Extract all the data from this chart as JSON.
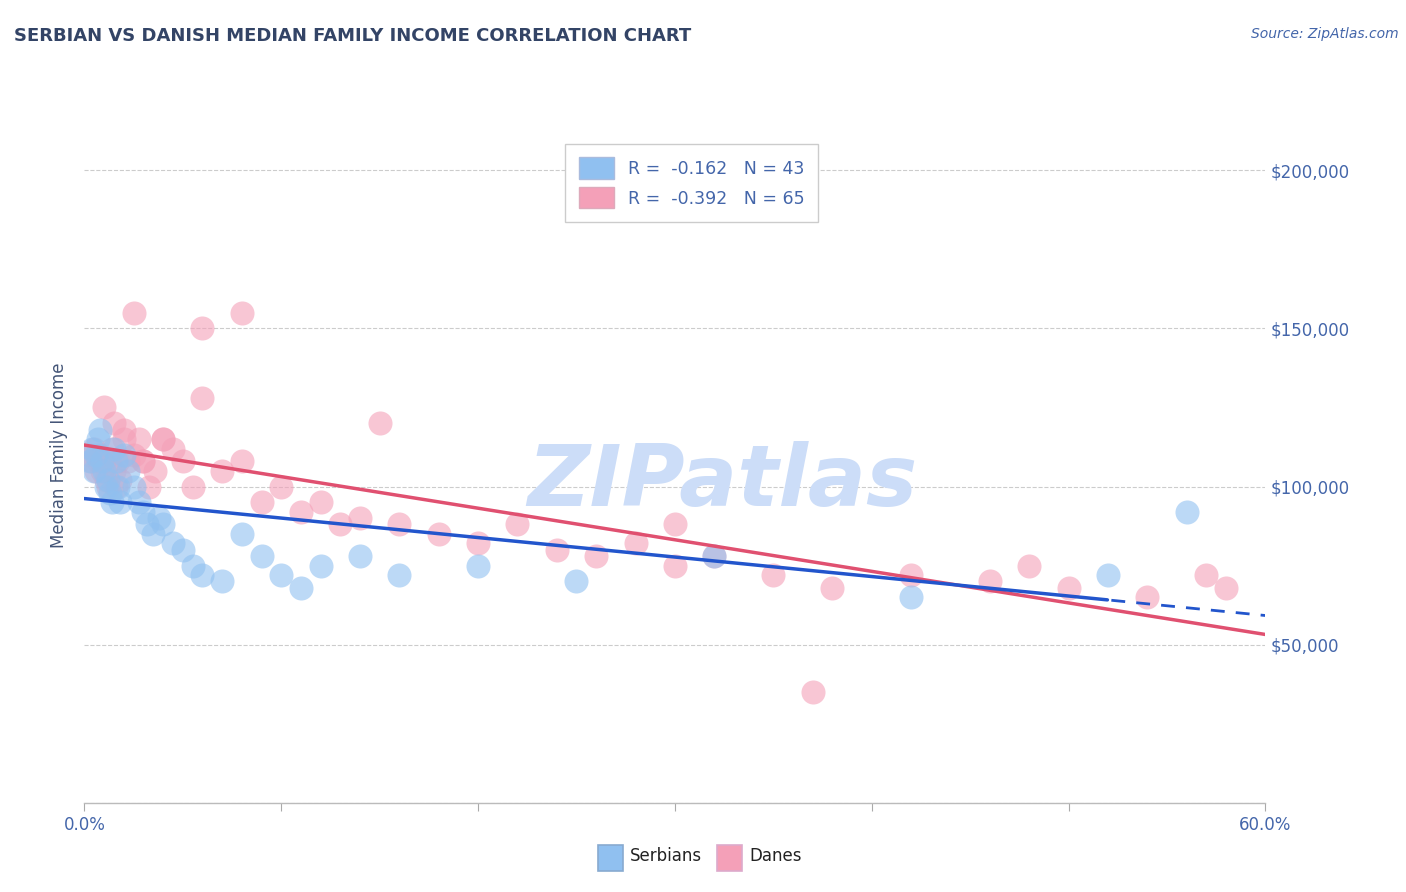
{
  "title": "SERBIAN VS DANISH MEDIAN FAMILY INCOME CORRELATION CHART",
  "source_text": "Source: ZipAtlas.com",
  "ylabel": "Median Family Income",
  "xlim": [
    0.0,
    0.6
  ],
  "ylim": [
    0,
    220000
  ],
  "xtick_vals": [
    0.0,
    0.1,
    0.2,
    0.3,
    0.4,
    0.5,
    0.6
  ],
  "xtick_labels_edge": {
    "0.0": "0.0%",
    "0.6": "60.0%"
  },
  "ytick_vals": [
    0,
    50000,
    100000,
    150000,
    200000
  ],
  "ytick_labels": [
    "",
    "$50,000",
    "$100,000",
    "$150,000",
    "$200,000"
  ],
  "serbian_color": "#90c0f0",
  "danish_color": "#f4a0b8",
  "serbian_line_color": "#2255cc",
  "danish_line_color": "#e05070",
  "watermark": "ZIPatlas",
  "watermark_color": "#ccddf8",
  "title_color": "#334466",
  "axis_label_color": "#445577",
  "tick_color": "#4466aa",
  "grid_color": "#cccccc",
  "background_color": "#ffffff",
  "legend_r1": "R = ",
  "legend_v1": "-0.162",
  "legend_n1": "N = 43",
  "legend_r2": "R = ",
  "legend_v2": "-0.392",
  "legend_n2": "N = 65",
  "bottom_legend_serbian": "Serbians",
  "bottom_legend_danish": "Danes",
  "serbian_x": [
    0.003,
    0.004,
    0.005,
    0.006,
    0.007,
    0.008,
    0.009,
    0.01,
    0.011,
    0.012,
    0.013,
    0.014,
    0.015,
    0.016,
    0.017,
    0.018,
    0.02,
    0.022,
    0.025,
    0.028,
    0.03,
    0.032,
    0.035,
    0.038,
    0.04,
    0.045,
    0.05,
    0.055,
    0.06,
    0.07,
    0.08,
    0.09,
    0.1,
    0.11,
    0.12,
    0.14,
    0.16,
    0.2,
    0.25,
    0.32,
    0.42,
    0.52,
    0.56
  ],
  "serbian_y": [
    108000,
    112000,
    105000,
    110000,
    115000,
    118000,
    108000,
    105000,
    100000,
    102000,
    98000,
    95000,
    112000,
    108000,
    100000,
    95000,
    110000,
    105000,
    100000,
    95000,
    92000,
    88000,
    85000,
    90000,
    88000,
    82000,
    80000,
    75000,
    72000,
    70000,
    85000,
    78000,
    72000,
    68000,
    75000,
    78000,
    72000,
    75000,
    70000,
    78000,
    65000,
    72000,
    92000
  ],
  "danish_x": [
    0.003,
    0.004,
    0.005,
    0.006,
    0.007,
    0.008,
    0.009,
    0.01,
    0.011,
    0.012,
    0.013,
    0.014,
    0.015,
    0.016,
    0.017,
    0.018,
    0.02,
    0.022,
    0.025,
    0.028,
    0.03,
    0.033,
    0.036,
    0.04,
    0.045,
    0.05,
    0.055,
    0.06,
    0.07,
    0.08,
    0.09,
    0.1,
    0.11,
    0.12,
    0.13,
    0.14,
    0.16,
    0.18,
    0.2,
    0.22,
    0.24,
    0.26,
    0.28,
    0.3,
    0.32,
    0.35,
    0.38,
    0.42,
    0.46,
    0.5,
    0.54,
    0.57,
    0.58,
    0.01,
    0.015,
    0.02,
    0.025,
    0.03,
    0.04,
    0.06,
    0.08,
    0.15,
    0.3,
    0.48,
    0.37
  ],
  "danish_y": [
    110000,
    108000,
    112000,
    105000,
    108000,
    110000,
    105000,
    108000,
    102000,
    100000,
    108000,
    112000,
    105000,
    100000,
    108000,
    102000,
    115000,
    108000,
    110000,
    115000,
    108000,
    100000,
    105000,
    115000,
    112000,
    108000,
    100000,
    128000,
    105000,
    108000,
    95000,
    100000,
    92000,
    95000,
    88000,
    90000,
    88000,
    85000,
    82000,
    88000,
    80000,
    78000,
    82000,
    75000,
    78000,
    72000,
    68000,
    72000,
    70000,
    68000,
    65000,
    72000,
    68000,
    125000,
    120000,
    118000,
    155000,
    108000,
    115000,
    150000,
    155000,
    120000,
    88000,
    75000,
    35000
  ]
}
